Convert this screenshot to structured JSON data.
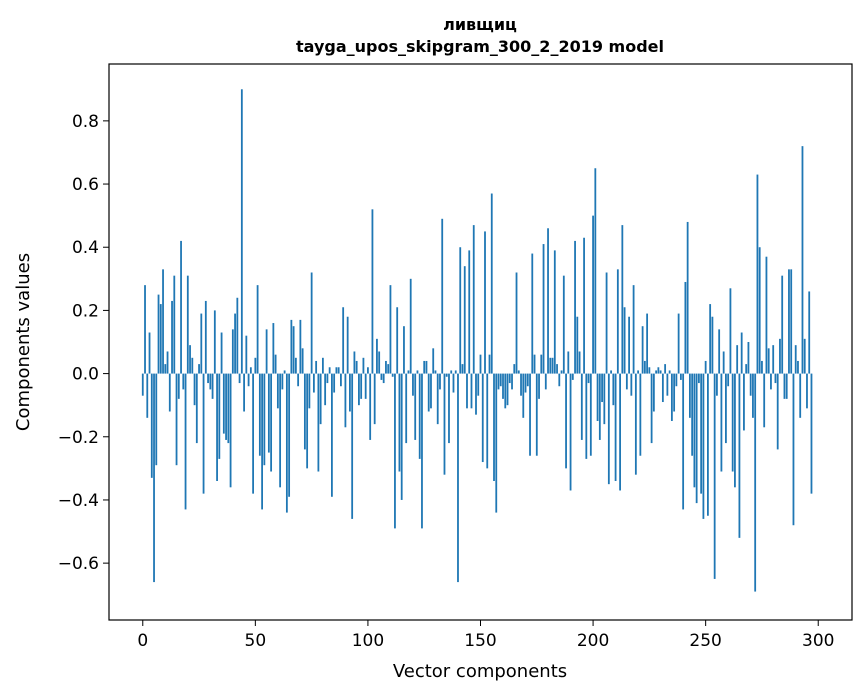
{
  "chart_data": {
    "type": "bar",
    "title_line1": "ливщиц",
    "title_line2": "tayga_upos_skipgram_300_2_2019 model",
    "xlabel": "Vector components",
    "ylabel": "Components values",
    "xlim": [
      -15,
      315
    ],
    "ylim": [
      -0.78,
      0.98
    ],
    "xticks": [
      0,
      50,
      100,
      150,
      200,
      250,
      300
    ],
    "xtick_labels": [
      "0",
      "50",
      "100",
      "150",
      "200",
      "250",
      "300"
    ],
    "yticks": [
      -0.6,
      -0.4,
      -0.2,
      0.0,
      0.2,
      0.4,
      0.6,
      0.8
    ],
    "ytick_labels": [
      "−0.6",
      "−0.4",
      "−0.2",
      "0.0",
      "0.2",
      "0.4",
      "0.6",
      "0.8"
    ],
    "bar_color": "#1f77b4",
    "grid": false,
    "values": [
      -0.07,
      0.28,
      -0.14,
      0.13,
      -0.33,
      -0.66,
      -0.29,
      0.25,
      0.22,
      0.33,
      0.03,
      0.07,
      -0.12,
      0.23,
      0.31,
      -0.29,
      -0.08,
      0.42,
      -0.05,
      -0.43,
      0.31,
      0.09,
      0.05,
      -0.1,
      -0.22,
      0.03,
      0.19,
      -0.38,
      0.23,
      -0.03,
      -0.05,
      -0.08,
      0.2,
      -0.34,
      -0.27,
      0.13,
      -0.19,
      -0.21,
      -0.22,
      -0.36,
      0.14,
      0.19,
      0.24,
      -0.03,
      0.9,
      -0.12,
      0.12,
      -0.04,
      0.02,
      -0.38,
      0.05,
      0.28,
      -0.26,
      -0.43,
      -0.29,
      0.14,
      -0.25,
      -0.31,
      0.16,
      0.06,
      -0.11,
      -0.36,
      -0.05,
      0.01,
      -0.44,
      -0.39,
      0.17,
      0.15,
      0.05,
      -0.04,
      0.17,
      0.08,
      -0.24,
      -0.3,
      -0.11,
      0.32,
      -0.06,
      0.04,
      -0.31,
      -0.16,
      0.05,
      -0.1,
      -0.03,
      0.02,
      -0.39,
      -0.06,
      0.02,
      0.02,
      -0.04,
      0.21,
      -0.17,
      0.18,
      -0.12,
      -0.46,
      0.07,
      0.04,
      -0.1,
      -0.08,
      0.05,
      -0.08,
      0.02,
      -0.21,
      0.52,
      -0.16,
      0.11,
      0.07,
      -0.02,
      -0.03,
      0.04,
      0.03,
      0.28,
      -0.01,
      -0.49,
      0.21,
      -0.31,
      -0.4,
      0.15,
      -0.22,
      0.01,
      0.3,
      -0.07,
      -0.21,
      0.01,
      -0.27,
      -0.49,
      0.04,
      0.04,
      -0.12,
      -0.11,
      0.08,
      0.01,
      -0.16,
      -0.05,
      0.49,
      -0.32,
      -0.01,
      -0.22,
      0.01,
      -0.06,
      0.01,
      -0.66,
      0.4,
      0.03,
      0.34,
      -0.11,
      0.39,
      -0.11,
      0.47,
      -0.13,
      -0.07,
      0.06,
      -0.28,
      0.45,
      -0.3,
      0.06,
      0.57,
      -0.34,
      -0.44,
      -0.05,
      -0.04,
      -0.08,
      -0.11,
      -0.1,
      -0.03,
      -0.05,
      0.03,
      0.32,
      0.01,
      -0.07,
      -0.14,
      -0.06,
      -0.04,
      -0.26,
      0.38,
      0.06,
      -0.26,
      -0.08,
      0.06,
      0.41,
      -0.05,
      0.46,
      0.05,
      0.05,
      0.39,
      0.03,
      -0.04,
      0.01,
      0.31,
      -0.3,
      0.07,
      -0.37,
      -0.02,
      0.42,
      0.18,
      0.07,
      -0.21,
      0.43,
      -0.27,
      -0.03,
      -0.26,
      0.5,
      0.65,
      -0.15,
      -0.21,
      -0.09,
      -0.16,
      0.32,
      -0.35,
      0.01,
      -0.1,
      -0.34,
      0.33,
      -0.37,
      0.47,
      0.21,
      -0.05,
      0.18,
      -0.07,
      0.28,
      -0.32,
      0.01,
      -0.26,
      0.15,
      0.04,
      0.19,
      0.02,
      -0.22,
      -0.12,
      0.01,
      0.02,
      0.01,
      -0.09,
      0.03,
      -0.07,
      0.01,
      -0.15,
      -0.12,
      -0.04,
      0.19,
      -0.02,
      -0.43,
      0.29,
      0.48,
      -0.14,
      -0.26,
      -0.36,
      -0.41,
      -0.03,
      -0.38,
      -0.46,
      0.04,
      -0.45,
      0.22,
      0.18,
      -0.65,
      -0.07,
      0.14,
      -0.31,
      0.07,
      -0.22,
      -0.04,
      0.27,
      -0.31,
      -0.36,
      0.09,
      -0.52,
      0.13,
      -0.18,
      0.03,
      0.1,
      -0.07,
      -0.14,
      -0.69,
      0.63,
      0.4,
      0.04,
      -0.17,
      0.37,
      0.08,
      -0.05,
      0.09,
      -0.03,
      -0.24,
      0.11,
      0.31,
      -0.08,
      -0.08,
      0.33,
      0.33,
      -0.48,
      0.09,
      0.04,
      -0.14,
      0.72,
      0.11,
      -0.11,
      0.26,
      -0.38
    ]
  }
}
